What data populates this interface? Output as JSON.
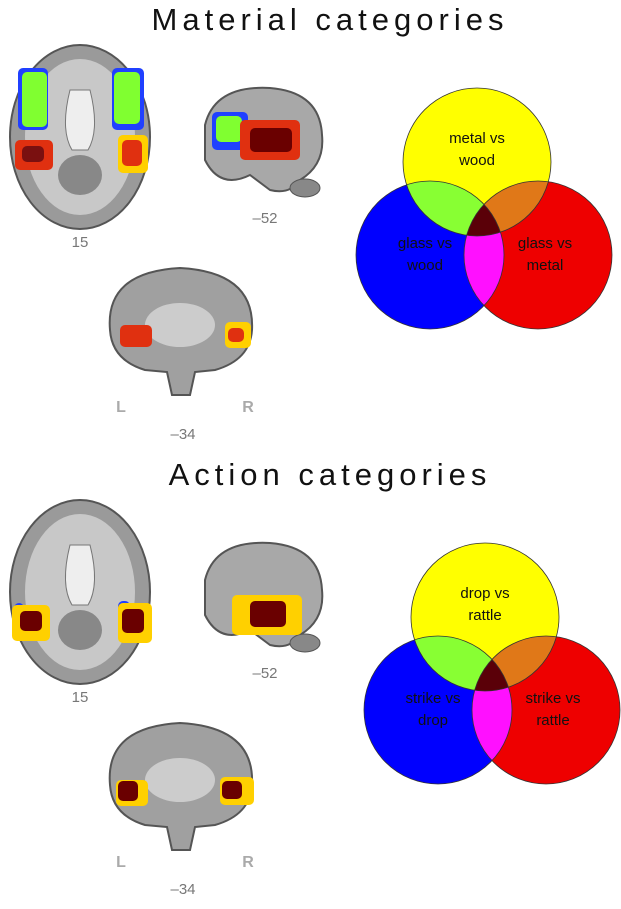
{
  "panels": [
    {
      "title": "Material categories",
      "slices": {
        "axial": "15",
        "sagittal": "–52",
        "coronal": "–34",
        "left": "L",
        "right": "R"
      },
      "venn": {
        "top": [
          "metal vs",
          "wood"
        ],
        "left": [
          "glass vs",
          "wood"
        ],
        "right": [
          "glass vs",
          "metal"
        ]
      }
    },
    {
      "title": "Action categories",
      "slices": {
        "axial": "15",
        "sagittal": "–52",
        "coronal": "–34",
        "left": "L",
        "right": "R"
      },
      "venn": {
        "top": [
          "drop vs",
          "rattle"
        ],
        "left": [
          "strike vs",
          "drop"
        ],
        "right": [
          "strike vs",
          "rattle"
        ]
      }
    }
  ]
}
